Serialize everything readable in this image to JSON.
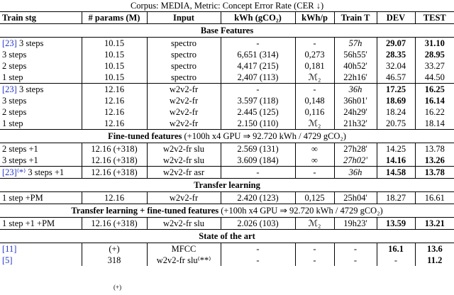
{
  "caption": "Corpus: MEDIA, Metric: Concept Error Rate (CER ↓)",
  "header": [
    "Train stg",
    "# params (M)",
    "Input",
    "kWh (gCO₂)",
    "kWh/p",
    "Train T",
    "DEV",
    "TEST"
  ],
  "sections": [
    {
      "title": "Base Features",
      "groups": [
        [
          {
            "ref": "[23]",
            "cells": [
              " 3 steps",
              "10.15",
              "spectro",
              "-",
              "-",
              "57h",
              "29.07",
              "31.10"
            ],
            "bold": [
              6,
              7
            ],
            "italic": [
              5
            ]
          },
          {
            "cells": [
              "3 steps",
              "10.15",
              "spectro",
              "6,651 (314)",
              "0,273",
              "56h55'",
              "28.35",
              "28.95"
            ],
            "bold": [
              6,
              7
            ]
          },
          {
            "cells": [
              "2 steps",
              "10.15",
              "spectro",
              "4,417 (215)",
              "0,181",
              "40h52'",
              "32.04",
              "33.27"
            ]
          },
          {
            "cells": [
              "1 step",
              "10.15",
              "spectro",
              "2,407 (113)",
              "ℳ₂",
              "22h16'",
              "46.57",
              "44.50"
            ]
          }
        ],
        [
          {
            "ref": "[23]",
            "cells": [
              " 3 steps",
              "12.16",
              "w2v2-fr",
              "-",
              "-",
              "36h",
              "17.25",
              "16.25"
            ],
            "bold": [
              6,
              7
            ],
            "italic": [
              5
            ]
          },
          {
            "cells": [
              "3 steps",
              "12.16",
              "w2v2-fr",
              "3.597 (118)",
              "0,148",
              "36h01'",
              "18.69",
              "16.14"
            ],
            "bold": [
              6,
              7
            ]
          },
          {
            "cells": [
              "2 steps",
              "12.16",
              "w2v2-fr",
              "2.445 (125)",
              "0,116",
              "24h29'",
              "18.24",
              "16.22"
            ]
          },
          {
            "cells": [
              "1 step",
              "12.16",
              "w2v2-fr",
              "2.150 (110)",
              "ℳ₂",
              "21h32'",
              "20.75",
              "18.14"
            ]
          }
        ]
      ]
    },
    {
      "title": "Fine-tuned features",
      "note": " (+100h x4 GPU ⇒ 92.720 kWh / 4729 gCO₂)",
      "groups": [
        [
          {
            "cells": [
              "2 steps +1",
              "12.16 (+318)",
              "w2v2-fr slu",
              "2.569 (131)",
              "∞",
              "27h28'",
              "14.25",
              "13.78"
            ]
          },
          {
            "cells": [
              "3 steps +1",
              "12.16 (+318)",
              "w2v2-fr slu",
              "3.609 (184)",
              "∞",
              "27h02'",
              "14.16",
              "13.26"
            ],
            "bold": [
              6,
              7
            ],
            "italic": [
              5
            ]
          }
        ],
        [
          {
            "ref": "[23]⁽*⁾",
            "cells": [
              " 3 steps +1",
              "12.16 (+318)",
              "w2v2-fr asr",
              "-",
              "-",
              "36h",
              "14.58",
              "13.78"
            ],
            "bold": [
              6,
              7
            ],
            "italic": [
              5
            ]
          }
        ]
      ]
    },
    {
      "title": "Transfer learning",
      "groups": [
        [
          {
            "cells": [
              "1 step +PM",
              "12.16",
              "w2v2-fr",
              "2.420 (123)",
              "0,125",
              "25h04'",
              "18.27",
              "16.61"
            ]
          }
        ]
      ]
    },
    {
      "title": "Transfer learning + fine-tuned features",
      "note": " (+100h x4 GPU ⇒ 92.720 kWh / 4729 gCO₂)",
      "groups": [
        [
          {
            "cells": [
              "1 step +1 +PM",
              "12.16 (+318)",
              "w2v2-fr slu",
              "2.026 (103)",
              "ℳ₂",
              "19h23'",
              "13.59",
              "13.21"
            ],
            "bold": [
              6,
              7
            ]
          }
        ]
      ]
    },
    {
      "title": "State of the art",
      "groups": [
        [
          {
            "ref": "[11]",
            "cells": [
              "",
              "(+)",
              "MFCC",
              "-",
              "-",
              "-",
              "16.1",
              "13.6"
            ],
            "bold": [
              6,
              7
            ]
          },
          {
            "ref": "[5]",
            "cells": [
              "",
              "318",
              "w2v2-fr slu⁽**⁾",
              "-",
              "-",
              "-",
              "-",
              "11.2"
            ],
            "bold": [
              7
            ]
          }
        ]
      ]
    }
  ],
  "footnote": "(+)"
}
